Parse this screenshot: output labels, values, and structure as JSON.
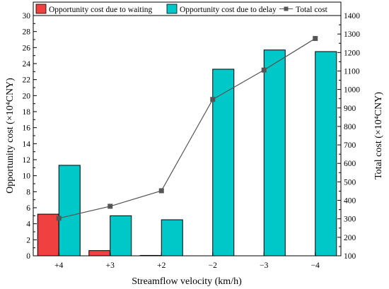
{
  "chart_data": {
    "type": "bar",
    "categories": [
      "+4",
      "+3",
      "+2",
      "−2",
      "−3",
      "−4"
    ],
    "series": [
      {
        "name": "Opportunity cost due to waiting",
        "type": "bar",
        "axis": "left",
        "color": "#f04040",
        "values": [
          5.2,
          0.65,
          0.05,
          0,
          0,
          0
        ]
      },
      {
        "name": "Opportunity cost due to delay",
        "type": "bar",
        "axis": "left",
        "color": "#00c8c8",
        "values": [
          11.3,
          5.0,
          4.5,
          23.3,
          25.7,
          25.5
        ]
      },
      {
        "name": "Total cost",
        "type": "line",
        "axis": "right",
        "color": "#555555",
        "values": [
          303,
          368,
          452,
          946,
          1105,
          1276
        ]
      }
    ],
    "xlabel": "Streamflow velocity (km/h)",
    "ylabel_left": "Opportunity cost (×10⁴CNY)",
    "ylabel_right": "Total cost (×10⁴CNY)",
    "ylim_left": [
      0,
      30
    ],
    "ylim_right": [
      100,
      1400
    ],
    "yticks_left": [
      "0",
      "2",
      "4",
      "6",
      "8",
      "10",
      "12",
      "14",
      "16",
      "18",
      "20",
      "22",
      "24",
      "26",
      "28",
      "30"
    ],
    "yticks_right": [
      "100",
      "200",
      "300",
      "400",
      "500",
      "600",
      "700",
      "800",
      "900",
      "1000",
      "1100",
      "1200",
      "1300",
      "1400"
    ],
    "grid": false,
    "legend_position": "top"
  }
}
